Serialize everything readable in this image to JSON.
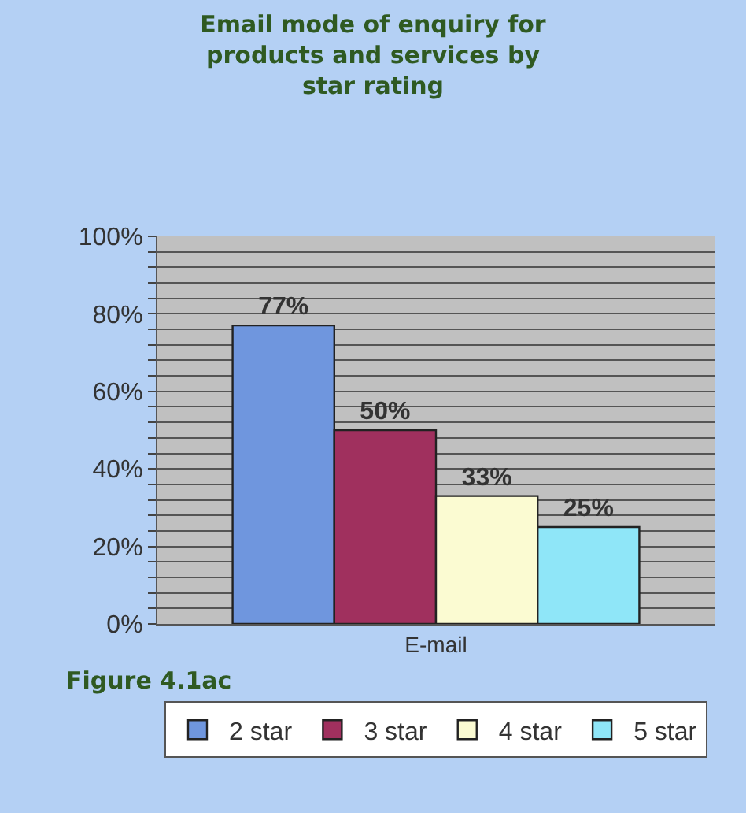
{
  "chart_data": {
    "type": "bar",
    "title": "Email mode of enquiry for products and services by star rating",
    "categories": [
      "E-mail"
    ],
    "series": [
      {
        "name": "2 star",
        "color": "#6f96de",
        "values": [
          77
        ],
        "value_labels": [
          "77%"
        ]
      },
      {
        "name": "3 star",
        "color": "#a0305e",
        "values": [
          50
        ],
        "value_labels": [
          "50%"
        ]
      },
      {
        "name": "4 star",
        "color": "#fbfbd2",
        "values": [
          33
        ],
        "value_labels": [
          "33%"
        ]
      },
      {
        "name": "5 star",
        "color": "#8fe6f8",
        "values": [
          25
        ],
        "value_labels": [
          "25%"
        ]
      }
    ],
    "ylim": [
      0,
      100
    ],
    "yticks": [
      {
        "value": 0,
        "label": "0%"
      },
      {
        "value": 4,
        "label": null
      },
      {
        "value": 8,
        "label": null
      },
      {
        "value": 12,
        "label": null
      },
      {
        "value": 16,
        "label": null
      },
      {
        "value": 20,
        "label": "20%"
      },
      {
        "value": 24,
        "label": null
      },
      {
        "value": 28,
        "label": null
      },
      {
        "value": 32,
        "label": null
      },
      {
        "value": 36,
        "label": null
      },
      {
        "value": 40,
        "label": "40%"
      },
      {
        "value": 44,
        "label": null
      },
      {
        "value": 48,
        "label": null
      },
      {
        "value": 52,
        "label": null
      },
      {
        "value": 56,
        "label": null
      },
      {
        "value": 60,
        "label": "60%"
      },
      {
        "value": 64,
        "label": null
      },
      {
        "value": 68,
        "label": null
      },
      {
        "value": 72,
        "label": null
      },
      {
        "value": 76,
        "label": null
      },
      {
        "value": 80,
        "label": "80%"
      },
      {
        "value": 84,
        "label": null
      },
      {
        "value": 88,
        "label": null
      },
      {
        "value": 92,
        "label": null
      },
      {
        "value": 96,
        "label": null
      },
      {
        "value": 100,
        "label": "100%"
      }
    ],
    "grid": "y",
    "legend": "bottom",
    "annotations": [
      "Figure 4.1ac"
    ]
  }
}
